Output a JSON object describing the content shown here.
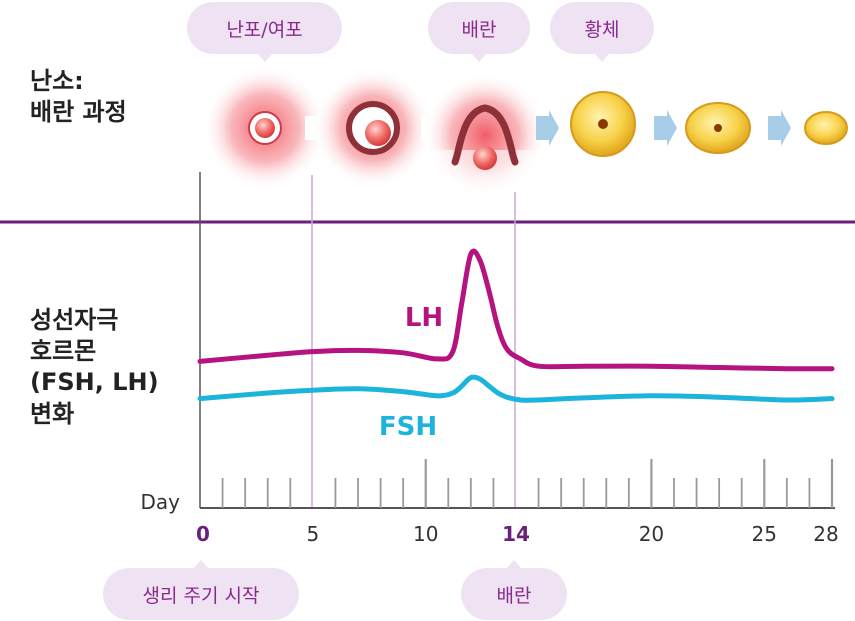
{
  "ovary": {
    "label": "난소:\n배란 과정",
    "stage_labels": {
      "follicle": "난포/여포",
      "ovulation": "배란",
      "corpus_luteum": "황체"
    }
  },
  "hormone": {
    "label": "성선자극\n호르몬\n(FSH, LH)\n변화"
  },
  "chart_data": {
    "type": "line",
    "xlabel": "Day",
    "x_ticks": [
      "0",
      "5",
      "10",
      "14",
      "20",
      "25",
      "28"
    ],
    "xlim": [
      0,
      28
    ],
    "series": [
      {
        "name": "LH",
        "color": "#b5137f",
        "x": [
          0,
          3,
          5,
          7,
          9,
          10.5,
          11.2,
          11.6,
          12.0,
          12.4,
          12.8,
          13.2,
          13.6,
          14.2,
          15,
          17,
          20,
          23,
          26,
          28
        ],
        "y": [
          12,
          17,
          20,
          21,
          19,
          14,
          20,
          60,
          100,
          95,
          70,
          40,
          22,
          14,
          8,
          8,
          8,
          7,
          6,
          6
        ]
      },
      {
        "name": "FSH",
        "color": "#1cb4dc",
        "x": [
          0,
          3,
          5,
          7,
          9,
          10.5,
          11.2,
          11.6,
          12.0,
          12.4,
          12.8,
          13.2,
          13.6,
          14.2,
          15,
          17,
          20,
          23,
          26,
          28
        ],
        "y": [
          -8,
          0,
          4,
          6,
          2,
          -4,
          0,
          10,
          22,
          20,
          10,
          0,
          -6,
          -10,
          -10,
          -7,
          -4,
          -6,
          -10,
          -8
        ]
      }
    ]
  },
  "markers": {
    "cycle_start": "생리 주기 시작",
    "ovulation": "배란"
  },
  "colors": {
    "accent": "#6b1f7b",
    "label_purple": "#8a2a8c",
    "pill_bg": "#efe3f3",
    "LH": "#b5137f",
    "FSH": "#1cb4dc"
  }
}
